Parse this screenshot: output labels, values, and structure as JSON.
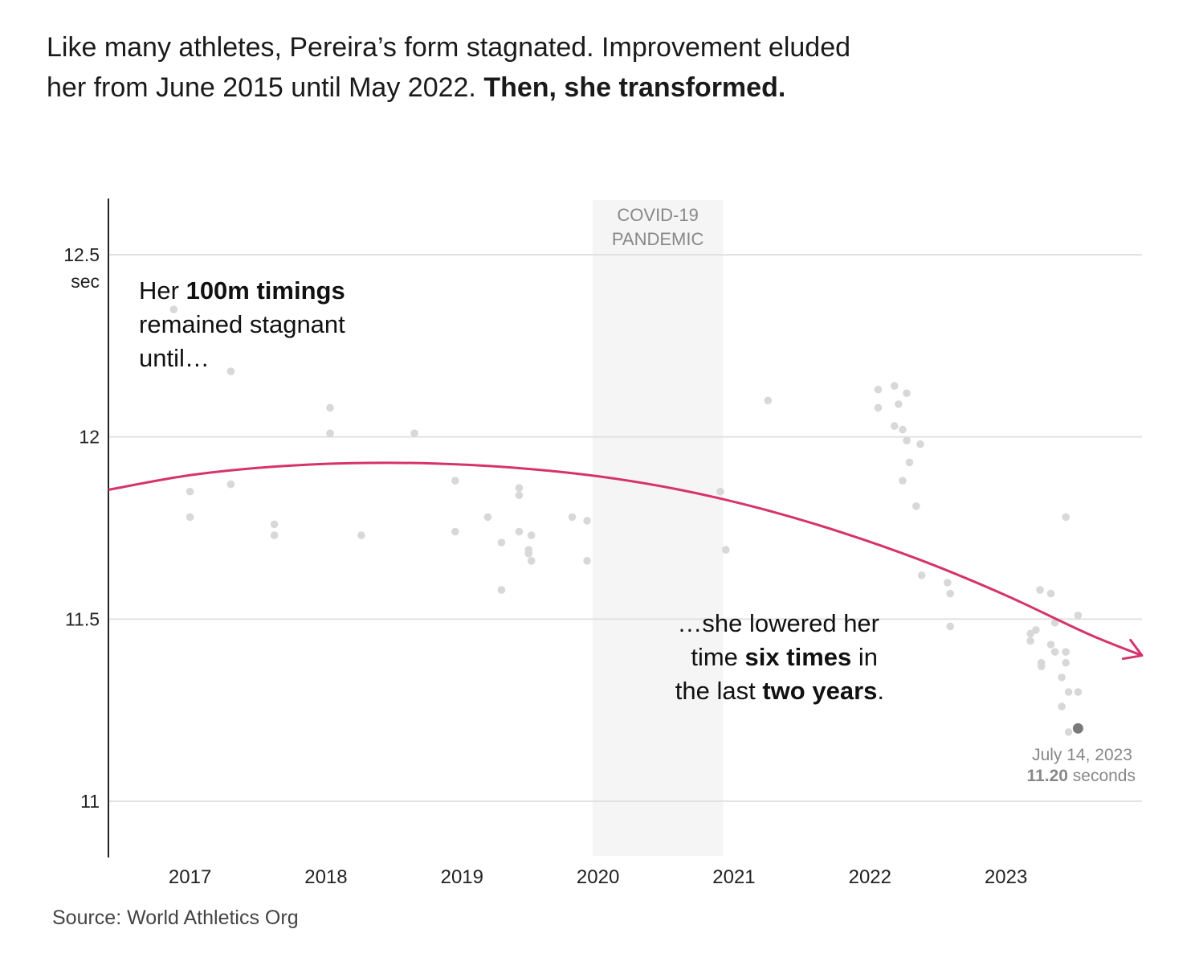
{
  "headline": {
    "line1": "Like many athletes, Pereira’s form stagnated. Improvement eluded",
    "line2_regular": "her from June 2015 until May 2022. ",
    "line2_bold": "Then, she transformed."
  },
  "source": "Source: World Athletics Org",
  "colors": {
    "trend": "#d6336c",
    "point": "#d8d8d8",
    "highlight": "#7a7a7a",
    "shade": "#f5f5f5",
    "grid": "#e2e2e2"
  },
  "chart_data": {
    "type": "scatter",
    "x_axis": {
      "tick_labels": [
        "2017",
        "2018",
        "2019",
        "2020",
        "2021",
        "2022",
        "2023"
      ],
      "xlim": [
        2016.4,
        2024.0
      ]
    },
    "y_axis": {
      "tick_labels": [
        "12.5",
        "12",
        "11.5",
        "11"
      ],
      "tick_values": [
        12.5,
        12.0,
        11.5,
        11.0
      ],
      "unit_label": "sec",
      "ylim": [
        10.85,
        12.65
      ]
    },
    "grid": "horizontal",
    "shaded_period": {
      "label_line1": "COVID-19",
      "label_line2": "PANDEMIC",
      "start": 2019.96,
      "end": 2020.92
    },
    "points": [
      {
        "x": 2016.88,
        "y": 12.35
      },
      {
        "x": 2017.0,
        "y": 11.85
      },
      {
        "x": 2017.0,
        "y": 11.78
      },
      {
        "x": 2017.3,
        "y": 12.18
      },
      {
        "x": 2017.3,
        "y": 11.87
      },
      {
        "x": 2017.62,
        "y": 11.76
      },
      {
        "x": 2017.62,
        "y": 11.73
      },
      {
        "x": 2018.03,
        "y": 12.08
      },
      {
        "x": 2018.03,
        "y": 12.01
      },
      {
        "x": 2018.26,
        "y": 11.73
      },
      {
        "x": 2018.65,
        "y": 12.01
      },
      {
        "x": 2018.95,
        "y": 11.88
      },
      {
        "x": 2018.95,
        "y": 11.74
      },
      {
        "x": 2019.19,
        "y": 11.78
      },
      {
        "x": 2019.29,
        "y": 11.71
      },
      {
        "x": 2019.29,
        "y": 11.58
      },
      {
        "x": 2019.42,
        "y": 11.86
      },
      {
        "x": 2019.42,
        "y": 11.84
      },
      {
        "x": 2019.42,
        "y": 11.74
      },
      {
        "x": 2019.49,
        "y": 11.69
      },
      {
        "x": 2019.49,
        "y": 11.68
      },
      {
        "x": 2019.51,
        "y": 11.66
      },
      {
        "x": 2019.51,
        "y": 11.73
      },
      {
        "x": 2019.81,
        "y": 11.78
      },
      {
        "x": 2019.92,
        "y": 11.77
      },
      {
        "x": 2019.92,
        "y": 11.66
      },
      {
        "x": 2020.9,
        "y": 11.85
      },
      {
        "x": 2020.94,
        "y": 11.69
      },
      {
        "x": 2021.25,
        "y": 12.1
      },
      {
        "x": 2022.06,
        "y": 12.13
      },
      {
        "x": 2022.06,
        "y": 12.08
      },
      {
        "x": 2022.18,
        "y": 12.14
      },
      {
        "x": 2022.18,
        "y": 12.03
      },
      {
        "x": 2022.21,
        "y": 12.09
      },
      {
        "x": 2022.24,
        "y": 12.02
      },
      {
        "x": 2022.24,
        "y": 11.88
      },
      {
        "x": 2022.27,
        "y": 12.12
      },
      {
        "x": 2022.27,
        "y": 11.99
      },
      {
        "x": 2022.29,
        "y": 11.93
      },
      {
        "x": 2022.34,
        "y": 11.81
      },
      {
        "x": 2022.37,
        "y": 11.98
      },
      {
        "x": 2022.38,
        "y": 11.62
      },
      {
        "x": 2022.57,
        "y": 11.6
      },
      {
        "x": 2022.59,
        "y": 11.57
      },
      {
        "x": 2022.59,
        "y": 11.48
      },
      {
        "x": 2023.18,
        "y": 11.46
      },
      {
        "x": 2023.18,
        "y": 11.44
      },
      {
        "x": 2023.22,
        "y": 11.47
      },
      {
        "x": 2023.25,
        "y": 11.58
      },
      {
        "x": 2023.26,
        "y": 11.38
      },
      {
        "x": 2023.26,
        "y": 11.37
      },
      {
        "x": 2023.33,
        "y": 11.57
      },
      {
        "x": 2023.33,
        "y": 11.43
      },
      {
        "x": 2023.36,
        "y": 11.49
      },
      {
        "x": 2023.36,
        "y": 11.41
      },
      {
        "x": 2023.41,
        "y": 11.34
      },
      {
        "x": 2023.41,
        "y": 11.26
      },
      {
        "x": 2023.44,
        "y": 11.78
      },
      {
        "x": 2023.44,
        "y": 11.41
      },
      {
        "x": 2023.44,
        "y": 11.38
      },
      {
        "x": 2023.46,
        "y": 11.3
      },
      {
        "x": 2023.46,
        "y": 11.19
      },
      {
        "x": 2023.53,
        "y": 11.51
      },
      {
        "x": 2023.53,
        "y": 11.3
      }
    ],
    "highlight": {
      "x": 2023.53,
      "y": 11.2,
      "date_label": "July 14, 2023",
      "value_label": "11.20",
      "unit_label": "seconds"
    },
    "trend": {
      "x": [
        2016.4,
        2017.0,
        2017.6,
        2018.2,
        2018.8,
        2019.4,
        2020.0,
        2020.6,
        2021.2,
        2021.8,
        2022.4,
        2023.0,
        2023.6,
        2024.0
      ],
      "y": [
        11.855,
        11.895,
        11.918,
        11.928,
        11.927,
        11.915,
        11.892,
        11.855,
        11.803,
        11.737,
        11.658,
        11.565,
        11.46,
        11.4
      ]
    },
    "annotations": {
      "left": {
        "line1_regular": "Her ",
        "line1_bold": "100m timings",
        "line2": "remained stagnant",
        "line3": "until…"
      },
      "right": {
        "line1": "…she lowered her",
        "line2_regular_a": "time ",
        "line2_bold": "six times",
        "line2_regular_b": " in",
        "line3_regular_a": "the last ",
        "line3_bold": "two years",
        "line3_regular_b": "."
      }
    }
  }
}
